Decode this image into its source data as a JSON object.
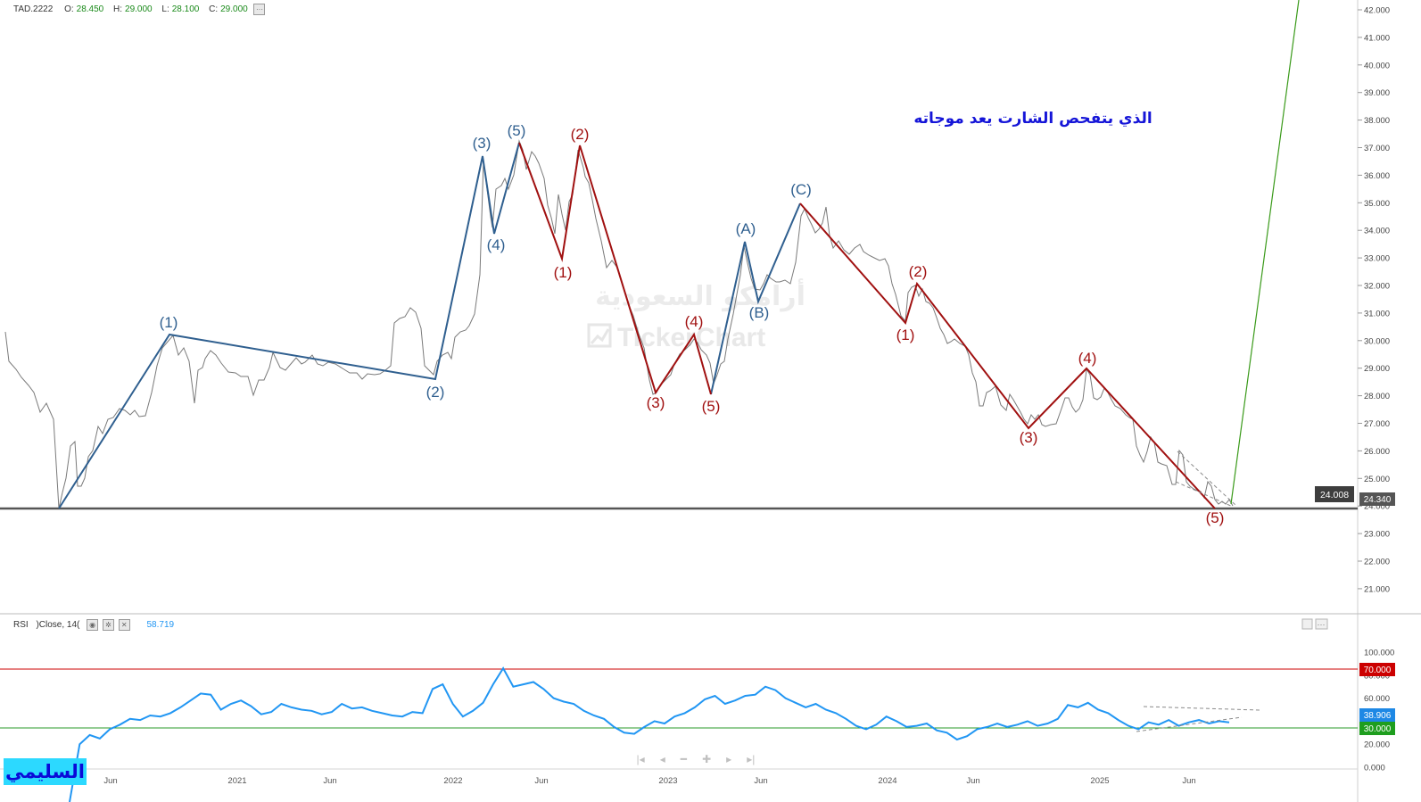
{
  "header": {
    "symbol": "TAD.2222",
    "o_label": "O:",
    "o_value": "28.450",
    "h_label": "H:",
    "h_value": "29.000",
    "l_label": "L:",
    "l_value": "28.100",
    "c_label": "C:",
    "c_value": "29.000"
  },
  "rsi_header": {
    "label": "RSI",
    "params": ")Close, 14(",
    "value": "58.719"
  },
  "annotation_text": "الذي يتفحص الشارت يعد موجاته",
  "watermark": {
    "line1": "أرامكو السعودية",
    "line2": "TickerChart"
  },
  "brand_label": "السليمي",
  "price_tags": {
    "left_tag": "24.008",
    "right_tag": "24.340"
  },
  "rsi_tags": {
    "current": "38.906",
    "overbought": "70.000",
    "oversold": "30.000"
  },
  "colors": {
    "price_line": "#7a7a7a",
    "blue_wave": "#2f5f8f",
    "red_wave": "#a01010",
    "green_projection": "#3a9a1a",
    "rsi_line": "#2196f3",
    "rsi_overbought": "#cc0000",
    "rsi_oversold": "#2a9a2a",
    "annotation": "#1515d8"
  },
  "chart_data": {
    "type": "line",
    "price_axis": {
      "ticks": [
        "42.000",
        "41.000",
        "40.000",
        "39.000",
        "38.000",
        "37.000",
        "36.000",
        "35.000",
        "34.000",
        "33.000",
        "32.000",
        "31.000",
        "30.000",
        "29.000",
        "28.000",
        "27.000",
        "26.000",
        "25.000",
        "24.000",
        "23.000",
        "22.000",
        "21.000"
      ],
      "range": [
        20.3,
        42.3
      ]
    },
    "time_axis": {
      "labels": [
        "Jun",
        "2021",
        "Jun",
        "2022",
        "Jun",
        "2023",
        "Jun",
        "2024",
        "Jun",
        "2025",
        "Jun"
      ]
    },
    "support_level": 24.0,
    "price_series": [
      [
        "2020-01",
        30.4
      ],
      [
        "2020-02",
        29.4
      ],
      [
        "2020-03",
        28.6
      ],
      [
        "2020-04",
        26.9
      ],
      [
        "2020-04",
        27.3
      ],
      [
        "2020-05",
        26.6
      ],
      [
        "2020-05",
        24.0
      ],
      [
        "2020-06",
        25.4
      ],
      [
        "2020-06",
        26.3
      ],
      [
        "2020-07",
        24.8
      ],
      [
        "2020-08",
        26.2
      ],
      [
        "2020-09",
        26.9
      ],
      [
        "2020-10",
        27.6
      ],
      [
        "2020-11",
        27.7
      ],
      [
        "2020-12",
        29.1
      ],
      [
        "2021-01",
        30.2
      ],
      [
        "2021-01",
        28.8
      ],
      [
        "2021-02",
        29.4
      ],
      [
        "2021-03",
        27.8
      ],
      [
        "2021-04",
        28.8
      ],
      [
        "2021-05",
        29.5
      ],
      [
        "2021-06",
        29.0
      ],
      [
        "2021-07",
        28.5
      ],
      [
        "2021-08",
        28.2
      ],
      [
        "2021-09",
        29.5
      ],
      [
        "2021-10",
        29.1
      ],
      [
        "2021-11",
        29.3
      ],
      [
        "2021-12",
        29.4
      ],
      [
        "2022-01",
        29.1
      ],
      [
        "2022-02",
        28.8
      ],
      [
        "2022-03",
        29.1
      ],
      [
        "2022-04",
        30.4
      ],
      [
        "2022-05",
        31.2
      ],
      [
        "2022-06",
        30.2
      ],
      [
        "2022-07",
        28.7
      ],
      [
        "2022-08",
        30.3
      ],
      [
        "2022-09",
        31.0
      ],
      [
        "2022-10",
        36.8
      ],
      [
        "2022-11",
        34.1
      ],
      [
        "2022-12",
        35.8
      ],
      [
        "2023-01",
        37.0
      ],
      [
        "2023-02",
        35.8
      ],
      [
        "2023-03",
        33.4
      ],
      [
        "2023-04",
        36.7
      ],
      [
        "2023-05",
        35.2
      ],
      [
        "2023-06",
        32.5
      ],
      [
        "2023-07",
        31.0
      ],
      [
        "2023-08",
        28.3
      ],
      [
        "2023-09",
        29.9
      ],
      [
        "2023-10",
        28.7
      ],
      [
        "2023-11",
        33.4
      ],
      [
        "2023-12",
        32.2
      ],
      [
        "2024-01",
        32.5
      ],
      [
        "2024-02",
        34.9
      ],
      [
        "2024-03",
        34.1
      ],
      [
        "2024-04",
        33.6
      ],
      [
        "2024-05",
        32.9
      ],
      [
        "2024-06",
        31.3
      ],
      [
        "2024-07",
        31.8
      ],
      [
        "2024-08",
        30.5
      ],
      [
        "2024-09",
        29.8
      ],
      [
        "2024-10",
        27.8
      ],
      [
        "2024-11",
        27.6
      ],
      [
        "2024-12",
        27.3
      ],
      [
        "2025-01",
        28.4
      ],
      [
        "2025-02",
        27.9
      ],
      [
        "2025-03",
        27.2
      ],
      [
        "2025-04",
        26.0
      ],
      [
        "2025-05",
        25.0
      ],
      [
        "2025-06",
        24.6
      ],
      [
        "2025-07",
        25.0
      ],
      [
        "2025-08",
        24.1
      ]
    ],
    "wave_labels": [
      "(1)",
      "(2)",
      "(3)",
      "(4)",
      "(5)",
      "(1)",
      "(2)",
      "(3)",
      "(4)",
      "(5)",
      "(A)",
      "(B)",
      "(C)",
      "(1)",
      "(2)",
      "(3)",
      "(4)",
      "(5)"
    ],
    "rsi": {
      "axis_ticks": [
        "100.000",
        "80.000",
        "60.000",
        "40.000",
        "20.000",
        "0.000"
      ],
      "overbought": 70,
      "oversold": 30,
      "values": [
        0,
        20,
        28,
        25,
        33,
        37,
        42,
        41,
        45,
        44,
        47,
        52,
        58,
        64,
        63,
        50,
        55,
        58,
        53,
        46,
        48,
        55,
        52,
        50,
        49,
        46,
        48,
        55,
        51,
        52,
        49,
        47,
        45,
        44,
        48,
        47,
        68,
        72,
        55,
        44,
        49,
        56,
        72,
        86,
        70,
        72,
        74,
        68,
        60,
        57,
        55,
        49,
        45,
        42,
        35,
        30,
        29,
        35,
        40,
        38,
        44,
        47,
        52,
        59,
        62,
        55,
        58,
        62,
        63,
        70,
        67,
        60,
        56,
        52,
        55,
        50,
        47,
        42,
        36,
        33,
        37,
        44,
        40,
        35,
        36,
        38,
        32,
        30,
        24,
        27,
        33,
        35,
        38,
        35,
        37,
        40,
        36,
        38,
        42,
        54,
        52,
        56,
        50,
        47,
        41,
        36,
        33,
        39,
        37,
        41,
        36,
        39,
        41,
        38,
        40,
        39
      ]
    }
  }
}
